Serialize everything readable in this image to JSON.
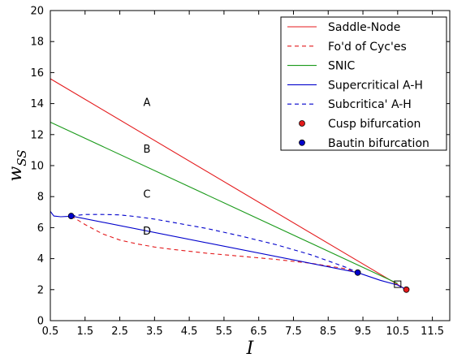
{
  "chart_data": {
    "type": "line",
    "xlabel": "I",
    "ylabel": "w",
    "ylabel_sub": "SS",
    "xlim": [
      0.5,
      12.0
    ],
    "ylim": [
      0,
      20
    ],
    "xticks": [
      "0.5",
      "1.5",
      "2.5",
      "3.5",
      "4.5",
      "5.5",
      "6.5",
      "7.5",
      "8.5",
      "9.5",
      "10.5",
      "11.5"
    ],
    "yticks": [
      "0",
      "2",
      "4",
      "6",
      "8",
      "10",
      "12",
      "14",
      "16",
      "18",
      "20"
    ],
    "grid": false,
    "legend_position": "top-right",
    "colors": {
      "red": "#e41a1c",
      "green": "#1a9a1a",
      "blue": "#0000cc",
      "cusp": "#e41a1c",
      "bautin": "#0000cc"
    },
    "series": [
      {
        "name": "Saddle-Node",
        "style": "solid",
        "color": "red",
        "x": [
          0.5,
          10.75
        ],
        "y": [
          15.6,
          2.0
        ]
      },
      {
        "name": "Fo'd of Cyc'es",
        "style": "dashed",
        "color": "red",
        "x": [
          1.1,
          1.5,
          2.0,
          2.5,
          3.0,
          3.5,
          4.0,
          5.0,
          6.0,
          7.0,
          8.0,
          9.0,
          9.35
        ],
        "y": [
          6.75,
          6.2,
          5.6,
          5.2,
          4.95,
          4.75,
          4.6,
          4.35,
          4.15,
          3.95,
          3.7,
          3.35,
          3.1
        ]
      },
      {
        "name": "SNIC",
        "style": "solid",
        "color": "green",
        "x": [
          0.5,
          10.5
        ],
        "y": [
          12.8,
          2.4
        ]
      },
      {
        "name": "Supercritical A-H",
        "style": "solid",
        "color": "blue",
        "x": [
          0.5,
          0.6,
          0.8,
          1.0,
          1.1,
          9.35,
          10.0,
          10.5,
          10.75
        ],
        "y": [
          7.05,
          6.75,
          6.7,
          6.72,
          6.75,
          3.1,
          2.6,
          2.3,
          2.0
        ]
      },
      {
        "name": "Subcritica' A-H",
        "style": "dashed",
        "color": "blue",
        "x": [
          1.1,
          1.5,
          2.0,
          2.5,
          3.0,
          3.5,
          4.0,
          5.0,
          6.0,
          7.0,
          8.0,
          9.0,
          9.35
        ],
        "y": [
          6.75,
          6.85,
          6.85,
          6.82,
          6.7,
          6.55,
          6.35,
          5.95,
          5.45,
          4.9,
          4.25,
          3.45,
          3.1
        ]
      }
    ],
    "points": [
      {
        "name": "Cusp bifurcation",
        "color": "cusp",
        "x": [
          10.75
        ],
        "y": [
          2.0
        ]
      },
      {
        "name": "Bautin bifurcation",
        "color": "bautin",
        "x": [
          1.1,
          9.35
        ],
        "y": [
          6.75,
          3.1
        ]
      }
    ],
    "square_marker": {
      "x": 10.5,
      "y": 2.35
    },
    "region_labels": [
      {
        "text": "A",
        "x": 3.0,
        "y": 14.1
      },
      {
        "text": "B",
        "x": 3.0,
        "y": 11.1
      },
      {
        "text": "C",
        "x": 3.0,
        "y": 8.2
      },
      {
        "text": "D",
        "x": 3.0,
        "y": 5.8
      }
    ]
  }
}
